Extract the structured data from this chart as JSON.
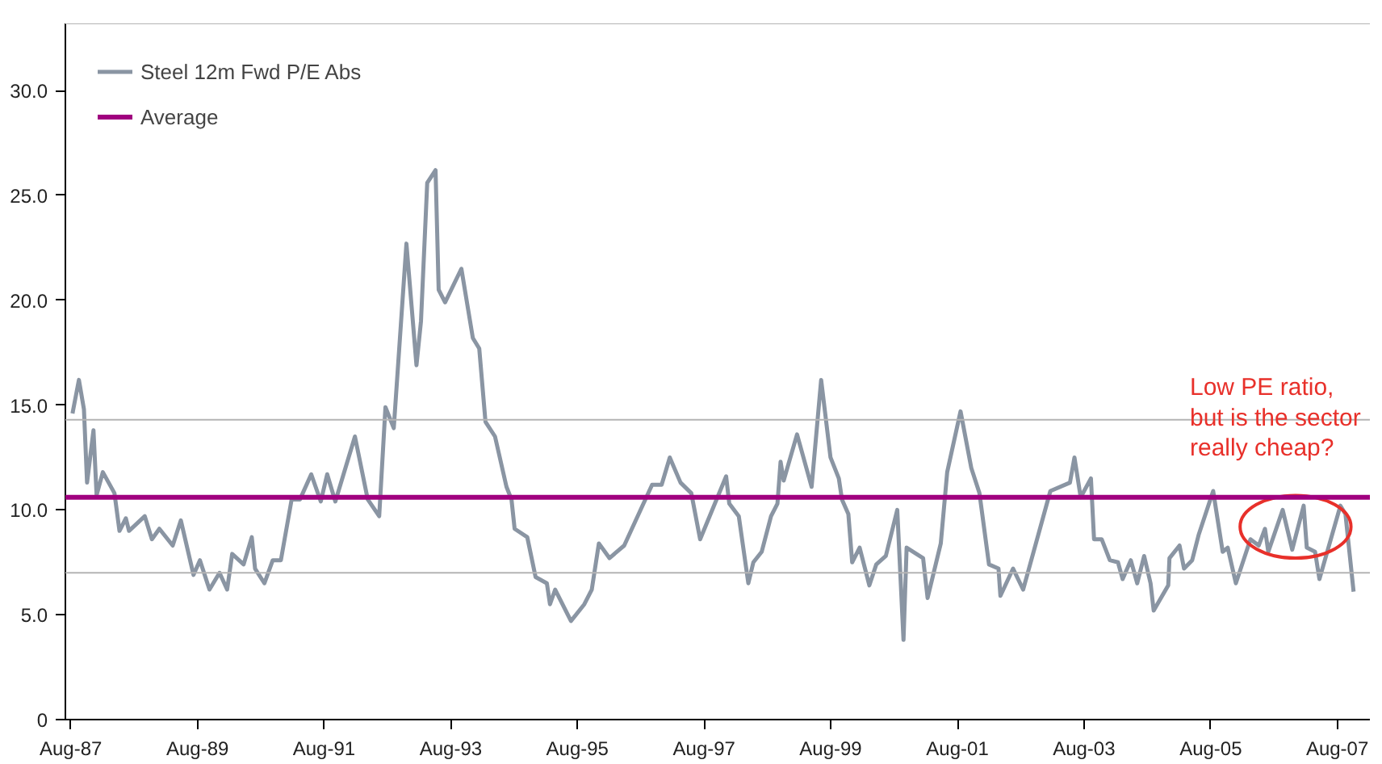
{
  "chart_data": {
    "type": "line",
    "x": [
      "1987-08-11",
      "1987-09-17",
      "1987-10-16",
      "1987-11-03",
      "1987-12-10",
      "1987-12-28",
      "1988-02-02",
      "1988-04-09",
      "1988-05-08",
      "1988-06-14",
      "1988-07-02",
      "1988-10-01",
      "1988-11-11",
      "1988-12-24",
      "1989-03-11",
      "1989-04-27",
      "1989-07-09",
      "1989-08-15",
      "1989-10-09",
      "1989-12-06",
      "1990-01-19",
      "1990-02-17",
      "1990-04-24",
      "1990-06-10",
      "1990-06-29",
      "1990-08-22",
      "1990-10-09",
      "1990-11-25",
      "1991-01-26",
      "1991-03-15",
      "1991-05-19",
      "1991-07-13",
      "1991-08-19",
      "1991-10-05",
      "1992-01-26",
      "1992-04-09",
      "1992-06-14",
      "1992-07-20",
      "1992-09-06",
      "1992-11-18",
      "1993-01-15",
      "1993-02-10",
      "1993-03-18",
      "1993-05-05",
      "1993-05-23",
      "1993-06-29",
      "1993-10-01",
      "1993-12-06",
      "1994-01-12",
      "1994-02-17",
      "1994-04-13",
      "1994-06-18",
      "1994-07-17",
      "1994-08-04",
      "1994-10-16",
      "1994-12-03",
      "1995-02-06",
      "1995-02-24",
      "1995-03-26",
      "1995-06-25",
      "1995-09-10",
      "1995-10-23",
      "1995-12-03",
      "1996-02-02",
      "1996-04-27",
      "1996-10-05",
      "1996-11-29",
      "1997-01-15",
      "1997-03-18",
      "1997-05-19",
      "1997-07-09",
      "1997-12-06",
      "1997-12-24",
      "1998-02-17",
      "1998-04-13",
      "1998-05-12",
      "1998-06-29",
      "1998-08-22",
      "1998-09-28",
      "1998-10-16",
      "1998-11-03",
      "1999-01-19",
      "1999-04-13",
      "1999-06-07",
      "1999-07-31",
      "1999-09-17",
      "1999-10-05",
      "1999-11-11",
      "1999-12-03",
      "2000-01-15",
      "2000-03-11",
      "2000-04-20",
      "2000-06-14",
      "2000-08-19",
      "2000-09-24",
      "2000-10-12",
      "2001-01-15",
      "2001-02-10",
      "2001-04-27",
      "2001-06-03",
      "2001-08-19",
      "2001-10-20",
      "2001-12-06",
      "2002-01-30",
      "2002-03-26",
      "2002-04-06",
      "2002-06-18",
      "2002-08-15",
      "2003-01-19",
      "2003-05-12",
      "2003-06-07",
      "2003-07-13",
      "2003-09-10",
      "2003-09-28",
      "2003-11-11",
      "2003-12-28",
      "2004-02-13",
      "2004-03-11",
      "2004-04-27",
      "2004-06-03",
      "2004-07-13",
      "2004-08-19",
      "2004-09-06",
      "2004-11-29",
      "2004-12-06",
      "2005-02-02",
      "2005-02-28",
      "2005-04-16",
      "2005-05-23",
      "2005-08-15",
      "2005-10-09",
      "2005-11-07",
      "2005-12-24",
      "2006-03-18",
      "2006-05-05",
      "2006-06-10",
      "2006-06-29",
      "2006-09-20",
      "2006-11-14",
      "2007-01-19",
      "2007-02-06",
      "2007-03-26",
      "2007-04-20",
      "2007-08-19",
      "2007-09-17",
      "2007-11-03"
    ],
    "series": [
      {
        "name": "Steel 12m Fwd P/E Abs",
        "color": "#8a95a3",
        "values": [
          14.6,
          16.2,
          14.8,
          11.3,
          13.8,
          10.7,
          11.8,
          10.8,
          9.0,
          9.6,
          9.0,
          9.7,
          8.6,
          9.1,
          8.3,
          9.5,
          6.9,
          7.6,
          6.2,
          7.0,
          6.2,
          7.9,
          7.4,
          8.7,
          7.2,
          6.5,
          7.6,
          7.6,
          10.5,
          10.5,
          11.7,
          10.4,
          11.7,
          10.4,
          13.5,
          10.5,
          9.7,
          14.9,
          13.9,
          22.7,
          16.9,
          19.0,
          25.6,
          26.2,
          20.5,
          19.9,
          21.5,
          18.2,
          17.7,
          14.2,
          13.5,
          11.1,
          10.5,
          9.1,
          8.7,
          6.8,
          6.5,
          5.5,
          6.2,
          4.7,
          5.5,
          6.2,
          8.4,
          7.7,
          8.3,
          11.2,
          11.2,
          12.5,
          11.3,
          10.8,
          8.6,
          11.6,
          10.3,
          9.7,
          6.5,
          7.5,
          8.0,
          9.7,
          10.3,
          12.3,
          11.4,
          13.6,
          11.1,
          16.2,
          12.5,
          11.5,
          10.5,
          9.8,
          7.5,
          8.2,
          6.4,
          7.4,
          7.8,
          10.0,
          3.8,
          8.2,
          7.7,
          5.8,
          8.4,
          11.8,
          14.7,
          12.0,
          10.8,
          7.4,
          7.2,
          5.9,
          7.2,
          6.2,
          10.9,
          11.3,
          12.5,
          10.6,
          11.5,
          8.6,
          8.6,
          7.6,
          7.5,
          6.7,
          7.6,
          6.5,
          7.8,
          6.5,
          5.2,
          6.4,
          7.7,
          8.3,
          7.2,
          7.6,
          8.8,
          10.9,
          8.0,
          8.2,
          6.5,
          8.6,
          8.3,
          9.1,
          8.0,
          10.0,
          8.1,
          10.2,
          8.2,
          8.0,
          6.7,
          10.2,
          9.8,
          6.1
        ]
      }
    ],
    "ref_lines": [
      {
        "axis": "y",
        "value": 10.6,
        "label": "Average",
        "color": "#a0007f"
      },
      {
        "axis": "y",
        "value": 14.3,
        "color": "#b4b4b4"
      },
      {
        "axis": "y",
        "value": 7.0,
        "color": "#b4b4b4"
      }
    ],
    "annotations": [
      "Low PE ratio,\nbut is the sector\nreally cheap?"
    ],
    "xlim": [
      "1987-07-01",
      "2008-02-05"
    ],
    "xticks": [
      {
        "value": "1987-08-01",
        "label": "Aug-87"
      },
      {
        "value": "1989-08-01",
        "label": "Aug-89"
      },
      {
        "value": "1991-08-01",
        "label": "Aug-91"
      },
      {
        "value": "1993-08-01",
        "label": "Aug-93"
      },
      {
        "value": "1995-08-01",
        "label": "Aug-95"
      },
      {
        "value": "1997-08-01",
        "label": "Aug-97"
      },
      {
        "value": "1999-08-01",
        "label": "Aug-99"
      },
      {
        "value": "2001-08-01",
        "label": "Aug-01"
      },
      {
        "value": "2003-08-01",
        "label": "Aug-03"
      },
      {
        "value": "2005-08-01",
        "label": "Aug-05"
      },
      {
        "value": "2007-08-01",
        "label": "Aug-07"
      }
    ],
    "ylim": [
      0,
      33.2
    ],
    "yticks": [
      0,
      {
        "value": 5,
        "label": "5.0"
      },
      {
        "value": 10,
        "label": "10.0"
      },
      {
        "value": 15,
        "label": "15.0"
      },
      {
        "value": 20,
        "label": "20.0"
      },
      {
        "value": 25,
        "label": "25.0"
      },
      {
        "value": 30,
        "label": "30.0"
      }
    ],
    "legend": "top left",
    "marker": "none",
    "line_style": "solid"
  }
}
